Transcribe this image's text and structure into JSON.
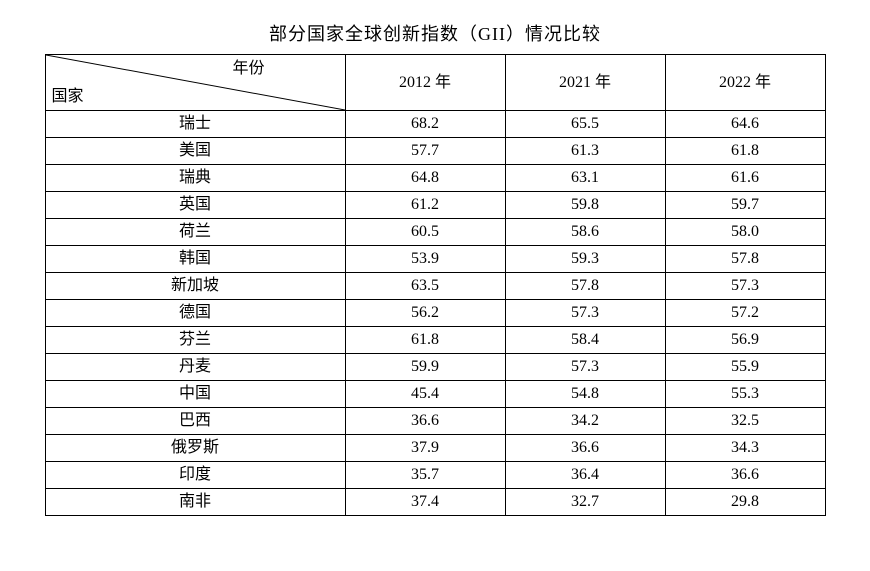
{
  "title": "部分国家全球创新指数（GII）情况比较",
  "table": {
    "header": {
      "diagonal_top": "年份",
      "diagonal_bottom": "国家",
      "years": [
        "2012 年",
        "2021 年",
        "2022 年"
      ]
    },
    "rows": [
      {
        "country": "瑞士",
        "values": [
          "68.2",
          "65.5",
          "64.6"
        ]
      },
      {
        "country": "美国",
        "values": [
          "57.7",
          "61.3",
          "61.8"
        ]
      },
      {
        "country": "瑞典",
        "values": [
          "64.8",
          "63.1",
          "61.6"
        ]
      },
      {
        "country": "英国",
        "values": [
          "61.2",
          "59.8",
          "59.7"
        ]
      },
      {
        "country": "荷兰",
        "values": [
          "60.5",
          "58.6",
          "58.0"
        ]
      },
      {
        "country": "韩国",
        "values": [
          "53.9",
          "59.3",
          "57.8"
        ]
      },
      {
        "country": "新加坡",
        "values": [
          "63.5",
          "57.8",
          "57.3"
        ]
      },
      {
        "country": "德国",
        "values": [
          "56.2",
          "57.3",
          "57.2"
        ]
      },
      {
        "country": "芬兰",
        "values": [
          "61.8",
          "58.4",
          "56.9"
        ]
      },
      {
        "country": "丹麦",
        "values": [
          "59.9",
          "57.3",
          "55.9"
        ]
      },
      {
        "country": "中国",
        "values": [
          "45.4",
          "54.8",
          "55.3"
        ]
      },
      {
        "country": "巴西",
        "values": [
          "36.6",
          "34.2",
          "32.5"
        ]
      },
      {
        "country": "俄罗斯",
        "values": [
          "37.9",
          "36.6",
          "34.3"
        ]
      },
      {
        "country": "印度",
        "values": [
          "35.7",
          "36.4",
          "36.6"
        ]
      },
      {
        "country": "南非",
        "values": [
          "37.4",
          "32.7",
          "29.8"
        ]
      }
    ],
    "border_color": "#000000",
    "text_color": "#000000",
    "background_color": "#ffffff",
    "font_family": "SimSun"
  }
}
